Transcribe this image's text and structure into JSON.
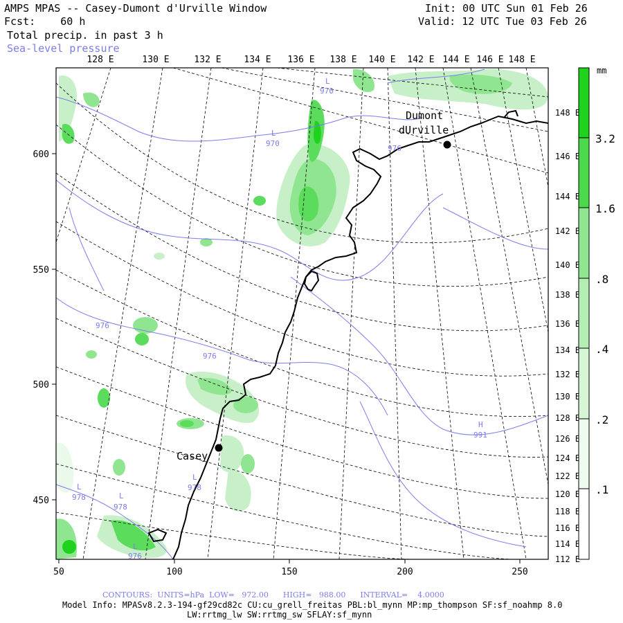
{
  "header": {
    "title": "AMPS MPAS -- Casey-Dumont d'Urville Window",
    "fcst": "Fcst:    60 h",
    "field": "Total precip. in past 3 h",
    "overlay": "Sea-level pressure",
    "init": "Init: 00 UTC Sun 01 Feb 26",
    "valid": "Valid: 12 UTC Tue 03 Feb 26"
  },
  "colors": {
    "precip_light": "#eaf9ea",
    "precip_mid1": "#c8f0c8",
    "precip_mid2": "#90e690",
    "precip_mid3": "#5cdc5c",
    "precip_dark": "#1ed21e",
    "isobar": "#7c7cf0",
    "coast": "#000000",
    "grid": "#000000"
  },
  "map": {
    "top_lon_labels": [
      "128 E",
      "130 E",
      "132 E",
      "134 E",
      "136 E",
      "138 E",
      "140 E",
      "142 E",
      "144 E",
      "146 E",
      "148 E"
    ],
    "right_lon_labels": [
      "148 E",
      "146 E",
      "144 E",
      "142 E",
      "140 E",
      "138 E",
      "136 E",
      "134 E",
      "132 E",
      "130 E",
      "128 E",
      "126 E",
      "124 E",
      "122 E",
      "120 E",
      "118 E",
      "116 E",
      "114 E",
      "112 E"
    ],
    "x_ticks": [
      "50",
      "100",
      "150",
      "200",
      "250"
    ],
    "y_ticks": [
      "600",
      "550",
      "500",
      "450"
    ],
    "stations": [
      {
        "name_line1": "Dumont",
        "name_line2": "dUrville"
      },
      {
        "name_line1": "Casey",
        "name_line2": ""
      }
    ],
    "pressure_labels": [
      {
        "letter": "L",
        "value": "970"
      },
      {
        "letter": "L",
        "value": "970"
      },
      {
        "letter": "",
        "value": "976"
      },
      {
        "letter": "",
        "value": "976"
      },
      {
        "letter": "",
        "value": "976"
      },
      {
        "letter": "H",
        "value": "991"
      },
      {
        "letter": "L",
        "value": "978"
      },
      {
        "letter": "L",
        "value": "978"
      },
      {
        "letter": "L",
        "value": "978"
      },
      {
        "letter": "L",
        "value": "976"
      }
    ]
  },
  "colorbar": {
    "unit": "mm",
    "labels": [
      "3.2",
      "1.6",
      ".8",
      ".4",
      ".2",
      ".1"
    ]
  },
  "footer": {
    "contours": "CONTOURS:  UNITS=hPa  LOW=   972.00      HIGH=   988.00      INTERVAL=    4.0000",
    "model_info": "Model Info: MPASv8.2.3-194-gf29cd82c CU:cu_grell_freitas PBL:bl_mynn MP:mp_thompson SF:sf_noahmp 8.0",
    "model_info2": "LW:rrtmg_lw SW:rrtmg_sw SFLAY:sf_mynn"
  }
}
